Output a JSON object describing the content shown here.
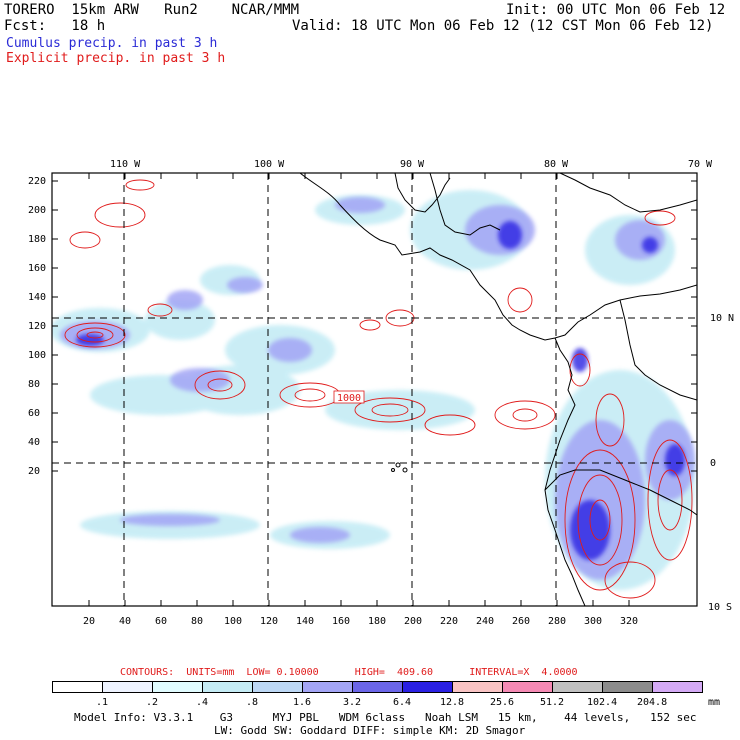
{
  "header": {
    "model": "TORERO  15km ARW   Run2    NCAR/MMM",
    "init": "Init: 00 UTC Mon 06 Feb 12",
    "fcst": "Fcst:   18 h",
    "valid": "Valid: 18 UTC Mon 06 Feb 12 (12 CST Mon 06 Feb 12)",
    "line_blue": "Cumulus precip. in past 3 h",
    "line_red": "Explicit precip. in past 3 h"
  },
  "map": {
    "lon_labels": [
      "110 W",
      "100 W",
      "90 W",
      "80 W",
      "70 W"
    ],
    "lat_labels": [
      "10 N",
      "0",
      "10 S"
    ],
    "y_ticks": [
      "220",
      "200",
      "180",
      "160",
      "140",
      "120",
      "100",
      "80",
      "60",
      "40",
      "20"
    ],
    "x_ticks": [
      "20",
      "40",
      "60",
      "80",
      "100",
      "120",
      "140",
      "160",
      "180",
      "200",
      "220",
      "240",
      "260",
      "280",
      "300",
      "320"
    ],
    "contour_label": "1000"
  },
  "footer": {
    "contours": "CONTOURS:  UNITS=mm  LOW= 0.10000      HIGH=  409.60      INTERVAL=X  4.0000",
    "units": "mm",
    "colorbar_values": [
      ".1",
      ".2",
      ".4",
      ".8",
      "1.6",
      "3.2",
      "6.4",
      "12.8",
      "25.6",
      "51.2",
      "102.4",
      "204.8"
    ],
    "colorbar_colors": [
      "#ffffff",
      "#eef3ff",
      "#e1fcff",
      "#c5ecf5",
      "#bdd8f5",
      "#a3a5f5",
      "#6b66e8",
      "#2a20e3",
      "#f9c4c4",
      "#f58ab4",
      "#c0c0c0",
      "#8c8c8c",
      "#d4aaf5"
    ],
    "info1": "Model Info: V3.3.1    G3      MYJ PBL   WDM 6class   Noah LSM   15 km,    44 levels,   152 sec",
    "info2": "LW: Godd SW: Goddard DIFF: simple KM: 2D Smagor"
  }
}
